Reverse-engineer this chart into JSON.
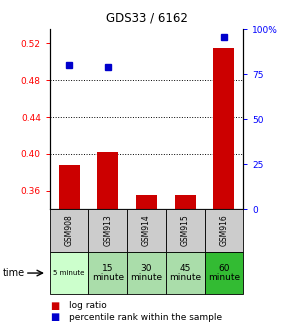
{
  "title": "GDS33 / 6162",
  "samples": [
    "GSM908",
    "GSM913",
    "GSM914",
    "GSM915",
    "GSM916"
  ],
  "time_labels": [
    "5 minute",
    "15\nminute",
    "30\nminute",
    "45\nminute",
    "60\nminute"
  ],
  "time_colors": [
    "#ccffcc",
    "#aaddaa",
    "#aaddaa",
    "#aaddaa",
    "#33bb33"
  ],
  "sample_bg_colors": [
    "#cccccc",
    "#cccccc",
    "#cccccc",
    "#cccccc",
    "#cccccc"
  ],
  "log_ratio": [
    0.388,
    0.402,
    0.356,
    0.356,
    0.515
  ],
  "percentile_rank": [
    80,
    79,
    null,
    null,
    96
  ],
  "bar_bottom": 0.355,
  "ylim_left": [
    0.34,
    0.535
  ],
  "ylim_right": [
    0,
    100
  ],
  "yticks_left": [
    0.36,
    0.4,
    0.44,
    0.48,
    0.52
  ],
  "yticks_right": [
    0,
    25,
    50,
    75,
    100
  ],
  "bar_color": "#cc0000",
  "dot_color": "#0000cc",
  "background_color": "#ffffff"
}
